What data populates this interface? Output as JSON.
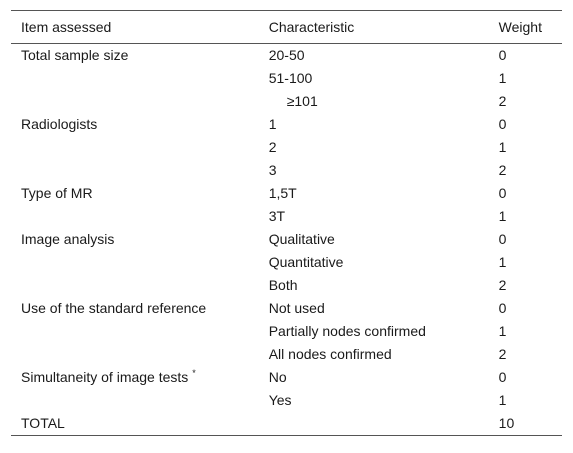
{
  "header": {
    "item": "Item assessed",
    "characteristic": "Characteristic",
    "weight": "Weight"
  },
  "rows": [
    {
      "item": "Total sample size",
      "characteristic": "20-50",
      "weight": "0"
    },
    {
      "item": "",
      "characteristic": "51-100",
      "weight": "1"
    },
    {
      "item": "",
      "characteristic": "≥101",
      "weight": "2"
    },
    {
      "item": "Radiologists",
      "characteristic": "1",
      "weight": "0"
    },
    {
      "item": "",
      "characteristic": "2",
      "weight": "1"
    },
    {
      "item": "",
      "characteristic": "3",
      "weight": "2"
    },
    {
      "item": "Type of MR",
      "characteristic": "1,5T",
      "weight": "0"
    },
    {
      "item": "",
      "characteristic": "3T",
      "weight": "1"
    },
    {
      "item": "Image analysis",
      "characteristic": "Qualitative",
      "weight": "0"
    },
    {
      "item": "",
      "characteristic": "Quantitative",
      "weight": "1"
    },
    {
      "item": "",
      "characteristic": "Both",
      "weight": "2"
    },
    {
      "item": "Use of the standard reference",
      "characteristic": "Not used",
      "weight": "0"
    },
    {
      "item": "",
      "characteristic": "Partially nodes confirmed",
      "weight": "1"
    },
    {
      "item": "",
      "characteristic": "All nodes confirmed",
      "weight": "2"
    },
    {
      "item": "Simultaneity of image tests",
      "item_mark": "*",
      "characteristic": "No",
      "weight": "0"
    },
    {
      "item": "",
      "characteristic": "Yes",
      "weight": "1"
    },
    {
      "item": "TOTAL",
      "characteristic": "",
      "weight": "10"
    }
  ]
}
